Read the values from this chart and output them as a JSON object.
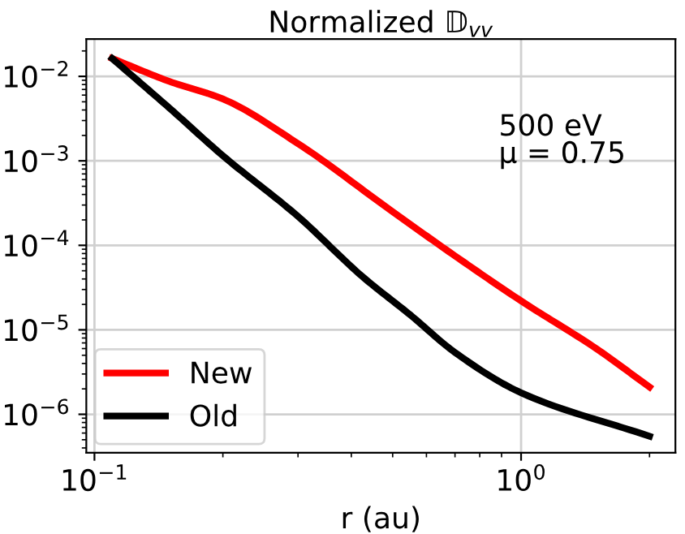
{
  "chart_data": {
    "type": "line",
    "title": "Normalized 𝔻$_{vv}$",
    "xlabel": "r (au)",
    "log": "xy",
    "xlim": [
      0.0957,
      2.3
    ],
    "ylim": [
      3.5e-07,
      0.0277
    ],
    "xticks": [
      {
        "value": 0.1,
        "label": "10$^{−1}$"
      },
      {
        "value": 1,
        "label": "10$^{0}$"
      }
    ],
    "yticks": [
      {
        "value": 1e-06,
        "label": "10$^{−6}$"
      },
      {
        "value": 1e-05,
        "label": "10$^{−5}$"
      },
      {
        "value": 0.0001,
        "label": "10$^{−4}$"
      },
      {
        "value": 0.001,
        "label": "10$^{−3}$"
      },
      {
        "value": 0.01,
        "label": "10$^{−2}$"
      }
    ],
    "grid": true,
    "legend": "bottom left",
    "annotations": [
      "500 eV\nμ = 0.75"
    ],
    "series": [
      {
        "name": "New",
        "color": "#ff0000",
        "x": [
          0.11,
          0.15,
          0.2,
          0.3,
          0.5,
          0.7,
          1.0,
          1.5,
          2.0
        ],
        "values": [
          0.0163,
          0.0087,
          0.0054,
          0.0016,
          0.00025,
          7.5e-05,
          2.2e-05,
          6e-06,
          2.1e-06
        ]
      },
      {
        "name": "Old",
        "color": "#000000",
        "x": [
          0.11,
          0.15,
          0.2,
          0.3,
          0.424,
          0.55,
          0.7,
          1.0,
          2.0
        ],
        "values": [
          0.0163,
          0.0042,
          0.00115,
          0.00022,
          4.3e-05,
          1.5e-05,
          5.4e-06,
          1.8e-06,
          5.5e-07
        ]
      }
    ]
  }
}
